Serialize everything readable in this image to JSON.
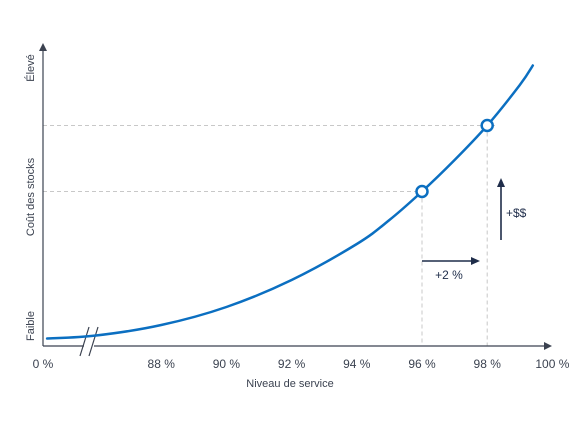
{
  "chart_data": {
    "type": "line",
    "xlabel": "Niveau de service",
    "ylabel": "Coût des stocks",
    "y_low_label": "Faible",
    "y_high_label": "Élevé",
    "x_ticks": [
      "0 %",
      "88 %",
      "90 %",
      "92 %",
      "94 %",
      "96 %",
      "98 %",
      "100 %"
    ],
    "x_tick_values": [
      0,
      88,
      90,
      92,
      94,
      96,
      98,
      100
    ],
    "x_axis_break": true,
    "grid": false,
    "curve": {
      "description_shape": "exponential",
      "x": [
        84.5,
        86,
        88,
        90,
        92,
        94,
        95,
        96,
        97,
        98,
        99,
        99.4
      ],
      "y": [
        0.025,
        0.035,
        0.07,
        0.13,
        0.22,
        0.34,
        0.42,
        0.515,
        0.62,
        0.735,
        0.87,
        0.935
      ]
    },
    "highlight_points": [
      {
        "x": 96,
        "y": 0.515
      },
      {
        "x": 98,
        "y": 0.735
      }
    ],
    "annotations": {
      "x_delta": "+2 %",
      "y_delta": "+$$"
    },
    "colors": {
      "curve": "#0b6fc1",
      "axis": "#3b4250",
      "guide": "#c8c8c8",
      "arrow": "#1f2d4a"
    }
  }
}
